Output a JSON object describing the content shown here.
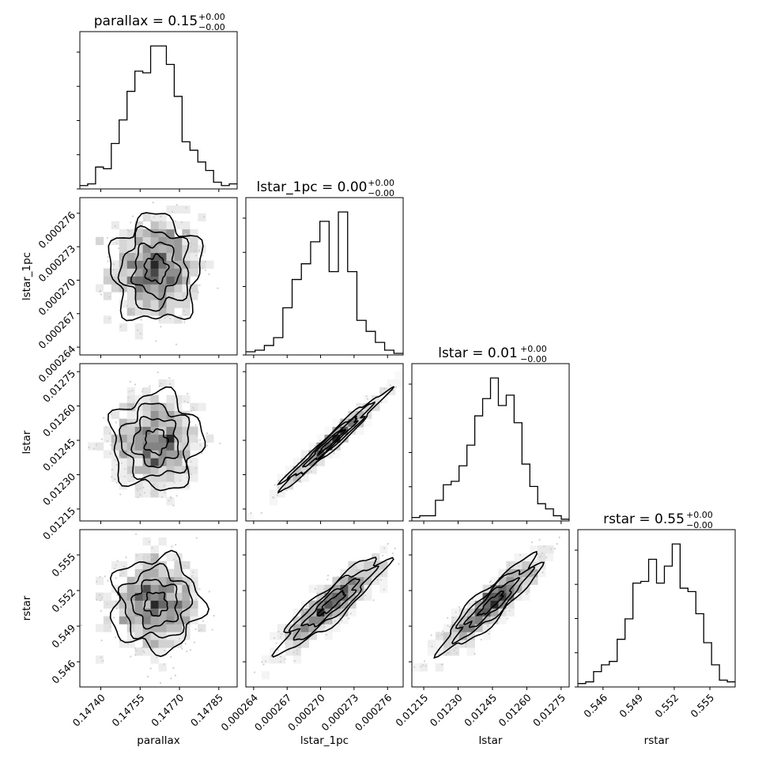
{
  "figure": {
    "params": [
      "parallax",
      "lstar_1pc",
      "lstar",
      "rstar"
    ]
  },
  "titles": [
    {
      "label": "parallax = 0.15",
      "sup": "+0.00",
      "sub": "−0.00"
    },
    {
      "label": "lstar_1pc = 0.00",
      "sup": "+0.00",
      "sub": "−0.00"
    },
    {
      "label": "lstar = 0.01",
      "sup": "+0.00",
      "sub": "−0.00"
    },
    {
      "label": "rstar = 0.55",
      "sup": "+0.00",
      "sub": "−0.00"
    }
  ],
  "axis_labels": {
    "x": [
      "parallax",
      "lstar_1pc",
      "lstar",
      "rstar"
    ],
    "y": [
      "lstar_1pc",
      "lstar",
      "rstar"
    ]
  },
  "ticks": {
    "parallax": {
      "values": [
        0.1474,
        0.14755,
        0.1477,
        0.14785
      ],
      "labels": [
        "0.14740",
        "0.14755",
        "0.14770",
        "0.14785"
      ]
    },
    "lstar_1pc": {
      "values": [
        0.000264,
        0.000267,
        0.00027,
        0.000273,
        0.000276
      ],
      "labels": [
        "0.000264",
        "0.000267",
        "0.000270",
        "0.000273",
        "0.000276"
      ]
    },
    "lstar": {
      "values": [
        0.01215,
        0.0123,
        0.01245,
        0.0126,
        0.01275
      ],
      "labels": [
        "0.01215",
        "0.01230",
        "0.01245",
        "0.01260",
        "0.01275"
      ]
    },
    "rstar": {
      "values": [
        0.546,
        0.549,
        0.552,
        0.555
      ],
      "labels": [
        "0.546",
        "0.549",
        "0.552",
        "0.555"
      ]
    }
  },
  "chart_data": {
    "type": "corner",
    "parameters": [
      "parallax",
      "lstar_1pc",
      "lstar",
      "rstar"
    ],
    "ranges": {
      "parallax": [
        0.14732,
        0.14792
      ],
      "lstar_1pc": [
        0.0002633,
        0.0002774
      ],
      "lstar": [
        0.012098,
        0.012785
      ],
      "rstar": [
        0.54388,
        0.55713
      ]
    },
    "histograms": [
      {
        "param": "parallax",
        "counts": [
          2,
          3,
          13,
          12,
          27,
          41,
          58,
          70,
          69,
          85,
          85,
          74,
          55,
          28,
          23,
          16,
          11,
          4,
          2,
          3
        ]
      },
      {
        "param": "lstar_1pc",
        "counts": [
          2,
          3,
          6,
          11,
          30,
          48,
          58,
          72,
          85,
          53,
          91,
          53,
          22,
          15,
          8,
          3,
          1
        ]
      },
      {
        "param": "lstar",
        "counts": [
          2,
          3,
          3,
          12,
          21,
          23,
          32,
          44,
          61,
          71,
          83,
          67,
          73,
          57,
          33,
          20,
          10,
          7,
          3,
          1
        ]
      },
      {
        "param": "rstar",
        "counts": [
          2,
          3,
          9,
          13,
          15,
          28,
          40,
          61,
          62,
          75,
          61,
          71,
          84,
          58,
          56,
          43,
          26,
          13,
          4,
          3
        ]
      }
    ],
    "correlations": [
      {
        "x": "lstar_1pc",
        "y": "parallax",
        "rho": 0.0
      },
      {
        "x": "lstar",
        "y": "parallax",
        "rho": 0.0
      },
      {
        "x": "rstar",
        "y": "parallax",
        "rho": 0.0
      },
      {
        "x": "lstar",
        "y": "lstar_1pc",
        "rho": 0.98
      },
      {
        "x": "rstar",
        "y": "lstar_1pc",
        "rho": 0.9
      },
      {
        "x": "rstar",
        "y": "lstar",
        "rho": 0.9
      }
    ],
    "means": {
      "parallax": 0.14761,
      "lstar_1pc": 0.000271,
      "lstar": 0.012445,
      "rstar": 0.5509
    },
    "sigmas": {
      "parallax": 8.5e-05,
      "lstar_1pc": 2.35e-06,
      "lstar": 0.000105,
      "rstar": 0.00195
    },
    "contour_levels_sigma": [
      0.5,
      1.0,
      1.5,
      2.0
    ],
    "grid": false
  }
}
